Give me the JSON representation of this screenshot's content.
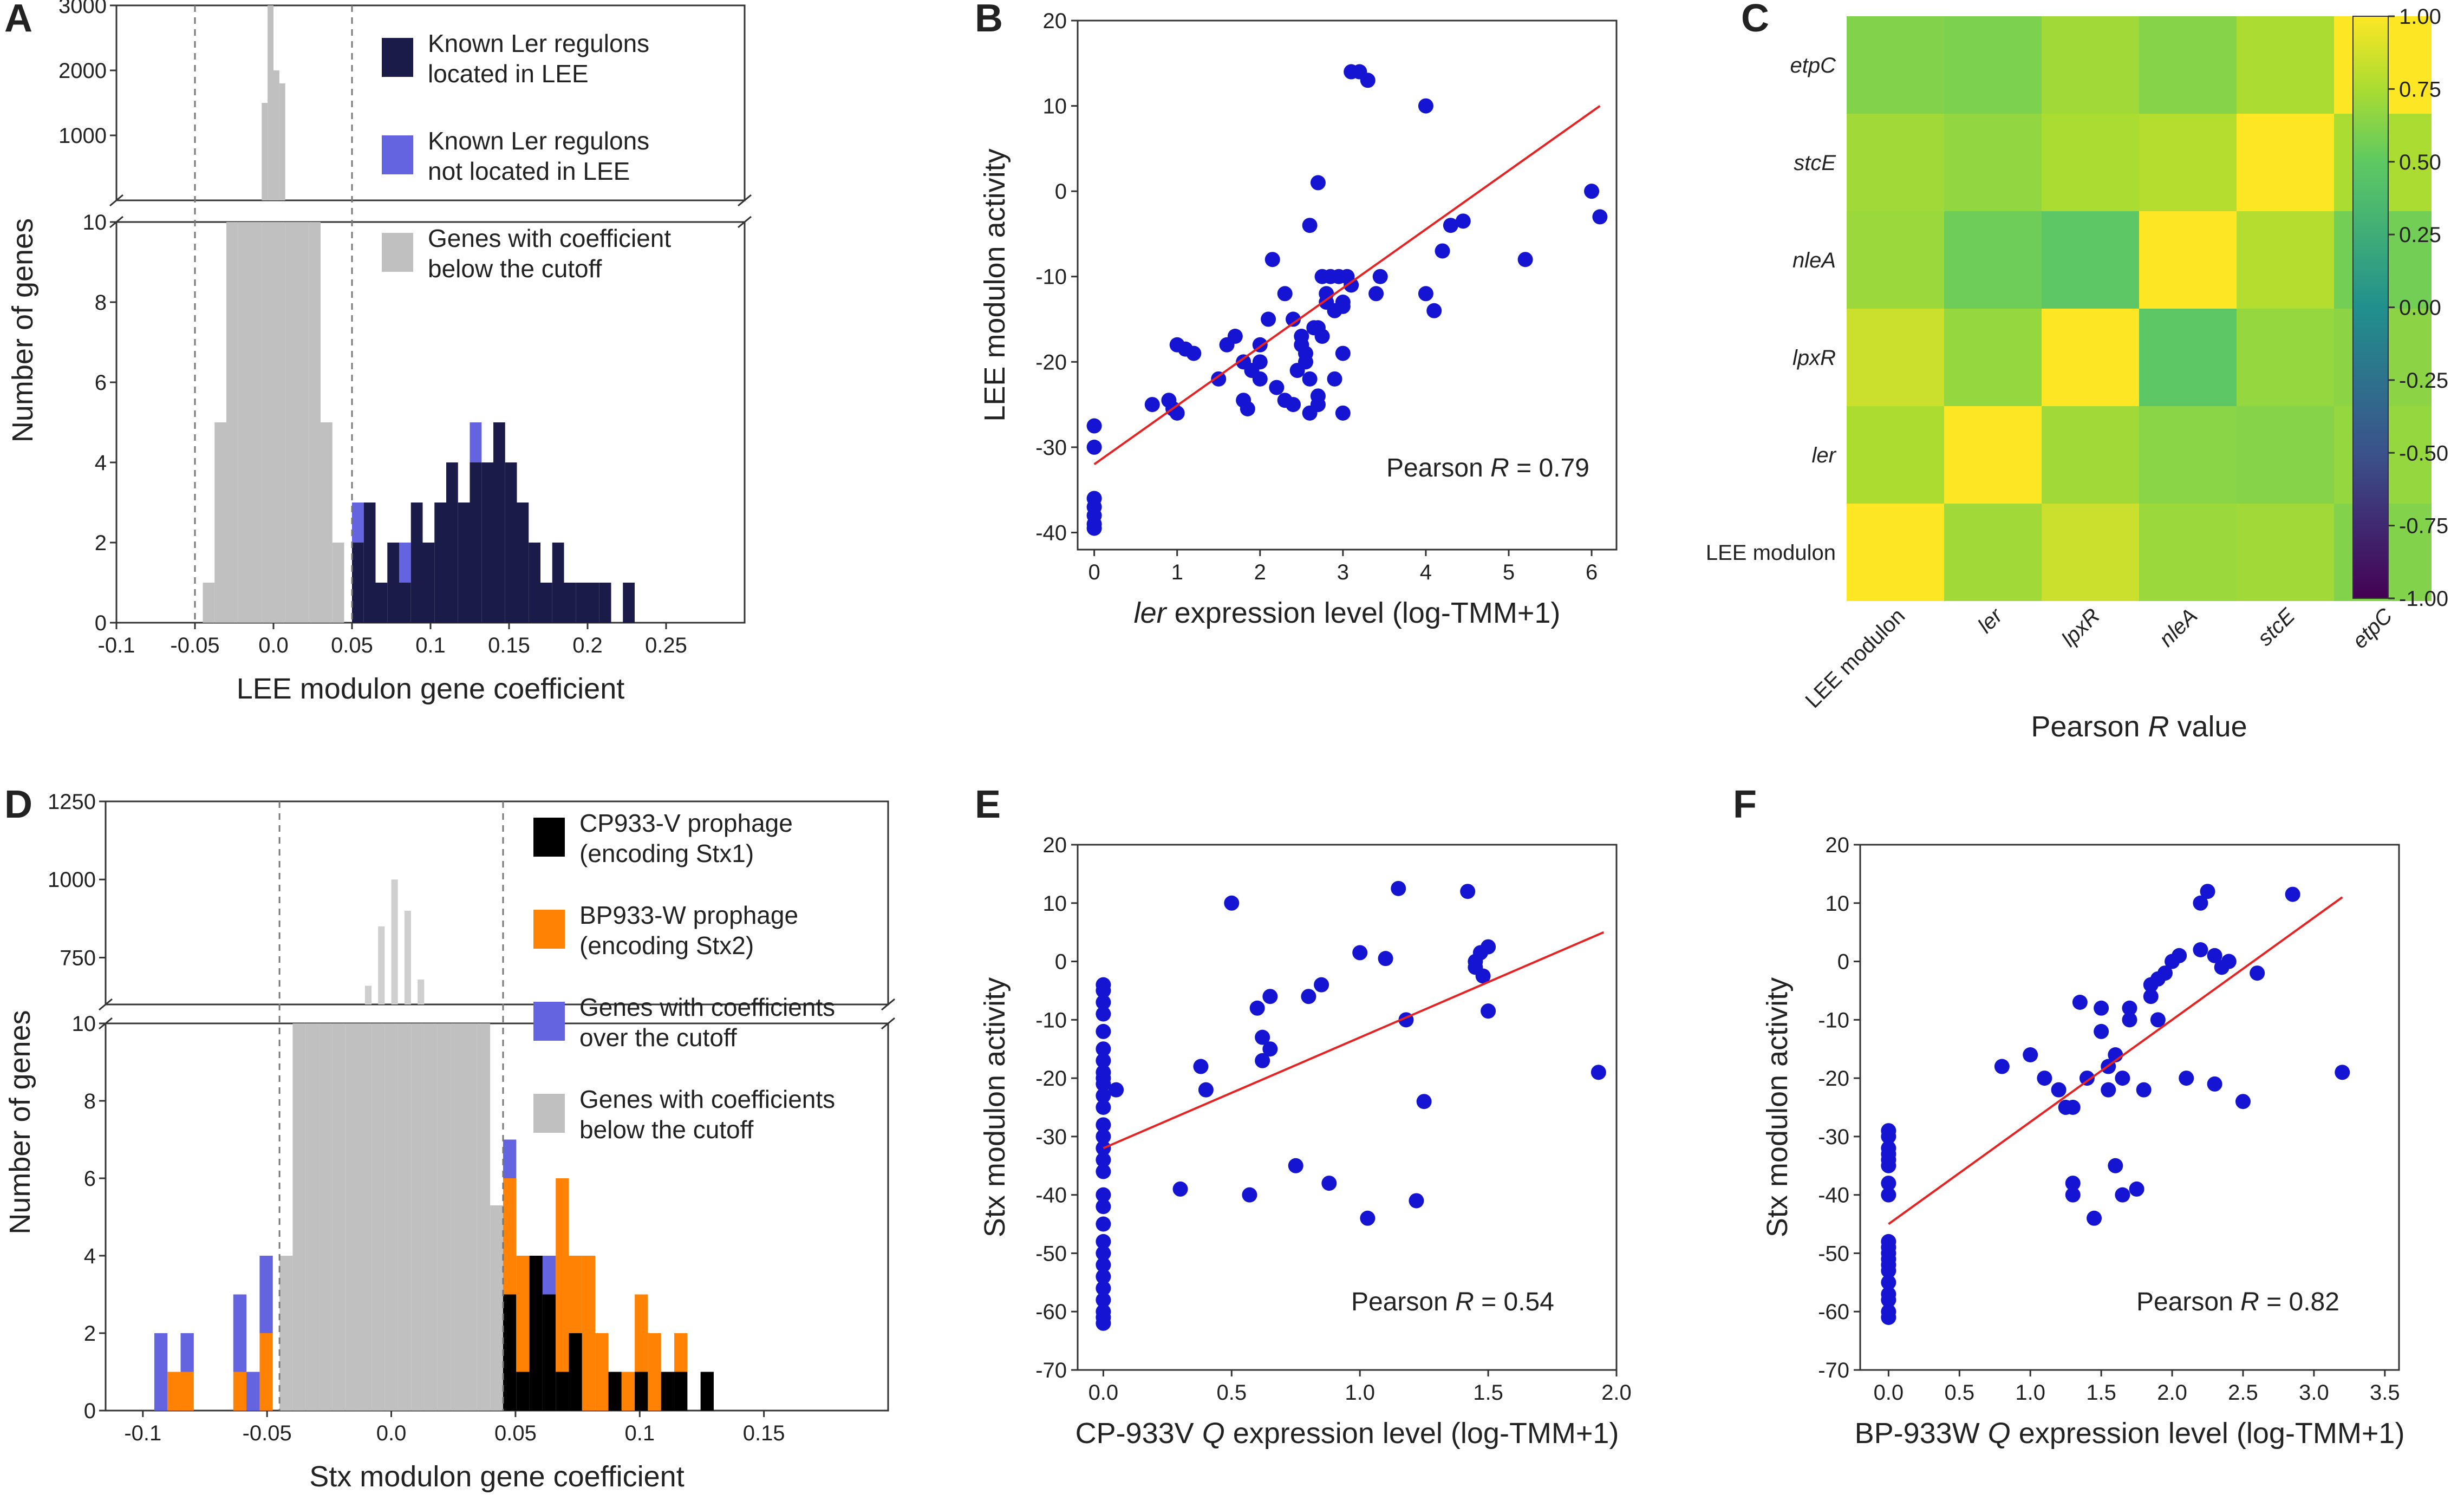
{
  "figure": {
    "panel_labels": [
      "A",
      "B",
      "C",
      "D",
      "E",
      "F"
    ],
    "colors": {
      "navy": "#1b1b4a",
      "violet": "#6464e0",
      "gray": "#c0c0c0",
      "lightgray": "#cfcfcf",
      "black": "#000000",
      "orange": "#ff8205",
      "point": "#1414d2",
      "fit": "#e62222"
    }
  },
  "chart_data": [
    {
      "panel": "A",
      "type": "bar",
      "title": "",
      "xlabel": "LEE modulon gene coefficient",
      "ylabel": "Number of genes",
      "xlim": [
        -0.1,
        0.3
      ],
      "ylim_bottom": [
        0,
        10
      ],
      "ylim_top": [
        0,
        3000
      ],
      "xticks": [
        "-0.1",
        "-0.05",
        "0.0",
        "0.05",
        "0.1",
        "0.15",
        "0.2",
        "0.25"
      ],
      "xtick_values": [
        -0.1,
        -0.05,
        0,
        0.05,
        0.1,
        0.15,
        0.2,
        0.25
      ],
      "yticks_bottom": [
        "0",
        "2",
        "4",
        "6",
        "8",
        "10"
      ],
      "yticks_top": [
        "1000",
        "2000",
        "3000"
      ],
      "cutoffs": [
        -0.05,
        0.05
      ],
      "bin_width": 0.0075,
      "legend": [
        {
          "label": "Known Ler regulons",
          "label2": "located in LEE",
          "color": "#1b1b4a"
        },
        {
          "label": "Known Ler regulons",
          "label2": "not located in LEE",
          "color": "#6464e0"
        },
        {
          "label": "Genes with coefficient",
          "label2": "below the cutoff",
          "color": "#c0c0c0"
        }
      ],
      "gray_bins": [
        {
          "x": -0.045,
          "v": 1
        },
        {
          "x": -0.0375,
          "v": 5
        },
        {
          "x": -0.03,
          "v": 10
        },
        {
          "x": -0.0225,
          "v": 10
        },
        {
          "x": -0.015,
          "v": 10
        },
        {
          "x": -0.0075,
          "v": 10
        },
        {
          "x": 0.0,
          "v": 10
        },
        {
          "x": 0.0075,
          "v": 10
        },
        {
          "x": 0.015,
          "v": 10
        },
        {
          "x": 0.0225,
          "v": 10
        },
        {
          "x": 0.03,
          "v": 5
        },
        {
          "x": 0.0375,
          "v": 2
        }
      ],
      "gray_top_bins": [
        {
          "x": -0.0075,
          "v": 1500
        },
        {
          "x": -0.00375,
          "v": 3000
        },
        {
          "x": 0.0,
          "v": 2000
        },
        {
          "x": 0.00375,
          "v": 1800
        }
      ],
      "stacked_bins": [
        {
          "x": 0.05,
          "navy": 2,
          "violet": 1
        },
        {
          "x": 0.0575,
          "navy": 3,
          "violet": 0
        },
        {
          "x": 0.065,
          "navy": 1,
          "violet": 0
        },
        {
          "x": 0.0725,
          "navy": 2,
          "violet": 0
        },
        {
          "x": 0.08,
          "navy": 1,
          "violet": 1
        },
        {
          "x": 0.0875,
          "navy": 3,
          "violet": 0
        },
        {
          "x": 0.095,
          "navy": 2,
          "violet": 0
        },
        {
          "x": 0.1025,
          "navy": 3,
          "violet": 0
        },
        {
          "x": 0.11,
          "navy": 4,
          "violet": 0
        },
        {
          "x": 0.1175,
          "navy": 3,
          "violet": 0
        },
        {
          "x": 0.125,
          "navy": 4,
          "violet": 1
        },
        {
          "x": 0.1325,
          "navy": 4,
          "violet": 0
        },
        {
          "x": 0.14,
          "navy": 5,
          "violet": 0
        },
        {
          "x": 0.1475,
          "navy": 4,
          "violet": 0
        },
        {
          "x": 0.155,
          "navy": 3,
          "violet": 0
        },
        {
          "x": 0.1625,
          "navy": 2,
          "violet": 0
        },
        {
          "x": 0.17,
          "navy": 1,
          "violet": 0
        },
        {
          "x": 0.1775,
          "navy": 2,
          "violet": 0
        },
        {
          "x": 0.185,
          "navy": 1,
          "violet": 0
        },
        {
          "x": 0.1925,
          "navy": 1,
          "violet": 0
        },
        {
          "x": 0.2,
          "navy": 1,
          "violet": 0
        },
        {
          "x": 0.2075,
          "navy": 1,
          "violet": 0
        },
        {
          "x": 0.2225,
          "navy": 1,
          "violet": 0
        }
      ]
    },
    {
      "panel": "B",
      "type": "scatter",
      "xlabel_italic": "ler",
      "xlabel": " expression level (log-TMM+1)",
      "ylabel": "LEE modulon activity",
      "xlim": [
        -0.2,
        6.3
      ],
      "ylim": [
        -42,
        20
      ],
      "xticks": [
        0,
        1,
        2,
        3,
        4,
        5,
        6
      ],
      "yticks": [
        -40,
        -30,
        -20,
        -10,
        0,
        10,
        20
      ],
      "annotation_pre": "Pearson ",
      "annotation_italic": "R",
      "annotation_post": " = 0.79",
      "fit": [
        [
          0,
          -32
        ],
        [
          6.1,
          10
        ]
      ],
      "x": [
        0,
        0,
        0,
        0,
        0,
        0,
        0,
        0.7,
        0.9,
        0.95,
        1,
        1,
        1.1,
        1.2,
        1.5,
        1.6,
        1.7,
        1.8,
        1.8,
        1.85,
        1.9,
        2,
        2,
        2,
        2.1,
        2.15,
        2.2,
        2.3,
        2.3,
        2.4,
        2.4,
        2.45,
        2.5,
        2.5,
        2.55,
        2.6,
        2.6,
        2.6,
        2.65,
        2.7,
        2.7,
        2.7,
        2.75,
        2.8,
        2.8,
        2.85,
        2.9,
        2.9,
        2.95,
        3,
        3,
        3,
        3.05,
        3.1,
        3.1,
        3.2,
        3.3,
        3.4,
        4,
        4,
        4.1,
        4.2,
        4.3,
        4.45,
        5.2,
        6,
        6.1
      ],
      "y": [
        -27.5,
        -30,
        -36,
        -37,
        -38,
        -39,
        -39.5,
        -25,
        -24.5,
        -25.5,
        -26,
        -18,
        -18.5,
        -19,
        -22,
        -18,
        -17,
        -24.5,
        -20,
        -25.5,
        -21,
        -18,
        -20,
        -22,
        -15,
        -8,
        -23,
        -12,
        -24.5,
        -15,
        -25,
        -21,
        -17,
        -18,
        -20,
        -22,
        -26,
        -4,
        -16,
        -24,
        -25,
        1,
        -17,
        -13,
        -12,
        -10,
        -14,
        -22,
        -10,
        -13,
        -13.5,
        -19,
        -10,
        -11,
        14,
        14,
        13,
        -12,
        -12,
        10,
        -14,
        -7,
        -4,
        -3.5,
        -8,
        0,
        -3
      ],
      "x_extra": [
        2.55,
        2.75,
        2.7,
        3.0,
        3.45
      ],
      "y_extra": [
        -19,
        -10,
        -16,
        -26,
        -10
      ]
    },
    {
      "panel": "C",
      "type": "heatmap",
      "xlabel_pre": "Pearson ",
      "xlabel_italic": "R",
      "xlabel_post": " value",
      "rows": [
        "etpC",
        "stcE",
        "nleA",
        "lpxR",
        "ler",
        "LEE modulon"
      ],
      "cols": [
        "LEE modulon",
        "ler",
        "lpxR",
        "nleA",
        "stcE",
        "etpC"
      ],
      "values": [
        [
          0.62,
          0.6,
          0.72,
          0.63,
          0.75,
          1.0
        ],
        [
          0.72,
          0.67,
          0.75,
          0.78,
          1.0,
          0.75
        ],
        [
          0.7,
          0.55,
          0.48,
          1.0,
          0.78,
          0.57
        ],
        [
          0.85,
          0.68,
          1.0,
          0.48,
          0.68,
          0.65
        ],
        [
          0.76,
          1.0,
          0.72,
          0.64,
          0.63,
          0.68
        ],
        [
          1.0,
          0.72,
          0.85,
          0.7,
          0.72,
          0.62
        ]
      ],
      "vmin": -1.0,
      "vmax": 1.0,
      "colorbar_ticks": [
        "1.00",
        "0.75",
        "0.50",
        "0.25",
        "0.00",
        "-0.25",
        "-0.50",
        "-0.75",
        "-1.00"
      ],
      "colorbar_values": [
        1.0,
        0.75,
        0.5,
        0.25,
        0.0,
        -0.25,
        -0.5,
        -0.75,
        -1.0
      ]
    },
    {
      "panel": "D",
      "type": "bar",
      "xlabel": "Stx modulon gene coefficient",
      "ylabel": "Number of genes",
      "xlim": [
        -0.115,
        0.2
      ],
      "ylim_bottom": [
        0,
        10
      ],
      "ylim_top": [
        600,
        1250
      ],
      "xticks": [
        "-0.1",
        "-0.05",
        "0.0",
        "0.05",
        "0.1",
        "0.15"
      ],
      "xtick_values": [
        -0.1,
        -0.05,
        0,
        0.05,
        0.1,
        0.15
      ],
      "yticks_bottom": [
        "0",
        "2",
        "4",
        "6",
        "8",
        "10"
      ],
      "yticks_top": [
        "750",
        "1000",
        "1250"
      ],
      "cutoffs": [
        -0.045,
        0.045
      ],
      "bin_width": 0.0053,
      "legend": [
        {
          "label": "CP933-V prophage",
          "label2": "(encoding Stx1)",
          "color": "#000000"
        },
        {
          "label": "BP933-W prophage",
          "label2": "(encoding Stx2)",
          "color": "#ff8205"
        },
        {
          "label": "Genes with coefficients",
          "label2": "over the cutoff",
          "color": "#6464e0"
        },
        {
          "label": "Genes with coefficients",
          "label2": "below the cutoff",
          "color": "#c0c0c0"
        }
      ],
      "gray_bins": [
        {
          "x": -0.045,
          "v": 4
        },
        {
          "x": -0.0397,
          "v": 10
        },
        {
          "x": -0.0344,
          "v": 10
        },
        {
          "x": -0.0291,
          "v": 10
        },
        {
          "x": -0.0238,
          "v": 10
        },
        {
          "x": -0.0185,
          "v": 10
        },
        {
          "x": -0.0132,
          "v": 10
        },
        {
          "x": -0.0079,
          "v": 10
        },
        {
          "x": -0.0026,
          "v": 10
        },
        {
          "x": 0.0027,
          "v": 10
        },
        {
          "x": 0.008,
          "v": 10
        },
        {
          "x": 0.0133,
          "v": 10
        },
        {
          "x": 0.0186,
          "v": 10
        },
        {
          "x": 0.0239,
          "v": 10
        },
        {
          "x": 0.0292,
          "v": 10
        },
        {
          "x": 0.0345,
          "v": 10
        },
        {
          "x": 0.0398,
          "v": 5.3
        }
      ],
      "gray_top_bins": [
        {
          "x": -0.0106,
          "v": 660
        },
        {
          "x": -0.0053,
          "v": 850
        },
        {
          "x": 0.0,
          "v": 1000
        },
        {
          "x": 0.0053,
          "v": 900
        },
        {
          "x": 0.0106,
          "v": 680
        }
      ],
      "stacked_bins": [
        {
          "x": -0.0954,
          "black": 0,
          "orange": 0,
          "violet": 2
        },
        {
          "x": -0.0901,
          "black": 0,
          "orange": 1,
          "violet": 0
        },
        {
          "x": -0.0848,
          "black": 0,
          "orange": 1,
          "violet": 1
        },
        {
          "x": -0.0795,
          "black": 0,
          "orange": 0,
          "violet": 0
        },
        {
          "x": -0.0742,
          "black": 0,
          "orange": 0,
          "violet": 0
        },
        {
          "x": -0.0689,
          "black": 0,
          "orange": 0,
          "violet": 0
        },
        {
          "x": -0.0636,
          "black": 0,
          "orange": 1,
          "violet": 2
        },
        {
          "x": -0.0583,
          "black": 0,
          "orange": 0,
          "violet": 1
        },
        {
          "x": -0.053,
          "black": 0,
          "orange": 2,
          "violet": 2
        },
        {
          "x": 0.045,
          "black": 3,
          "orange": 3,
          "violet": 1
        },
        {
          "x": 0.0503,
          "black": 1,
          "orange": 3,
          "violet": 0
        },
        {
          "x": 0.0556,
          "black": 4,
          "orange": 0,
          "violet": 0
        },
        {
          "x": 0.0609,
          "black": 3,
          "orange": 0,
          "violet": 1
        },
        {
          "x": 0.0662,
          "black": 1,
          "orange": 5,
          "violet": 0
        },
        {
          "x": 0.0715,
          "black": 2,
          "orange": 2,
          "violet": 0
        },
        {
          "x": 0.0768,
          "black": 0,
          "orange": 4,
          "violet": 0
        },
        {
          "x": 0.0821,
          "black": 0,
          "orange": 2,
          "violet": 0
        },
        {
          "x": 0.0874,
          "black": 1,
          "orange": 0,
          "violet": 0
        },
        {
          "x": 0.0927,
          "black": 0,
          "orange": 1,
          "violet": 0
        },
        {
          "x": 0.098,
          "black": 1,
          "orange": 2,
          "violet": 0
        },
        {
          "x": 0.1033,
          "black": 0,
          "orange": 2,
          "violet": 0
        },
        {
          "x": 0.1086,
          "black": 1,
          "orange": 0,
          "violet": 0
        },
        {
          "x": 0.1139,
          "black": 1,
          "orange": 1,
          "violet": 0
        },
        {
          "x": 0.1192,
          "black": 0,
          "orange": 0,
          "violet": 0
        },
        {
          "x": 0.1245,
          "black": 1,
          "orange": 0,
          "violet": 0
        }
      ]
    },
    {
      "panel": "E",
      "type": "scatter",
      "xlabel": "CP-933V ",
      "xlabel_italic": "Q",
      "xlabel_post": " expression level (log-TMM+1)",
      "ylabel": "Stx modulon activity",
      "xlim": [
        -0.1,
        2.0
      ],
      "ylim": [
        -70,
        20
      ],
      "xticks": [
        0.0,
        0.5,
        1.0,
        1.5,
        2.0
      ],
      "xtick_labels": [
        "0.0",
        "0.5",
        "1.0",
        "1.5",
        "2.0"
      ],
      "yticks": [
        -70,
        -60,
        -50,
        -40,
        -30,
        -20,
        -10,
        0,
        10,
        20
      ],
      "annotation_pre": "Pearson ",
      "annotation_italic": "R",
      "annotation_post": " = 0.54",
      "fit": [
        [
          0,
          -32
        ],
        [
          1.95,
          5
        ]
      ],
      "x": [
        0,
        0,
        0,
        0,
        0,
        0,
        0,
        0,
        0,
        0,
        0,
        0,
        0,
        0,
        0,
        0,
        0,
        0,
        0,
        0,
        0,
        0,
        0,
        0,
        0,
        0,
        0,
        0,
        0,
        0.05,
        0.3,
        0.38,
        0.4,
        0.5,
        0.57,
        0.6,
        0.62,
        0.62,
        0.65,
        0.65,
        0.75,
        0.8,
        0.85,
        0.88,
        1.0,
        1.03,
        1.1,
        1.15,
        1.18,
        1.22,
        1.25,
        1.42,
        1.45,
        1.45,
        1.47,
        1.48,
        1.5,
        1.5,
        1.93
      ],
      "y": [
        -4,
        -5,
        -7,
        -9,
        -12,
        -15,
        -17,
        -19,
        -21,
        -23,
        -28,
        -30,
        -32,
        -34,
        -36,
        -40,
        -42,
        -45,
        -48,
        -50,
        -52,
        -54,
        -56,
        -58,
        -60,
        -61,
        -62,
        -20,
        -25,
        -22,
        -39,
        -18,
        -22,
        10,
        -40,
        -8,
        -13,
        -17,
        -6,
        -15,
        -35,
        -6,
        -4,
        -38,
        1.5,
        -44,
        0.5,
        12.5,
        -10,
        -41,
        -24,
        12,
        -1,
        0,
        1.5,
        -2.5,
        2.5,
        -8.5,
        -19
      ]
    },
    {
      "panel": "F",
      "type": "scatter",
      "xlabel": "BP-933W ",
      "xlabel_italic": "Q",
      "xlabel_post": " expression level (log-TMM+1)",
      "ylabel": "Stx modulon activity",
      "xlim": [
        -0.2,
        3.6
      ],
      "ylim": [
        -70,
        20
      ],
      "xticks": [
        0.0,
        0.5,
        1.0,
        1.5,
        2.0,
        2.5,
        3.0,
        3.5
      ],
      "xtick_labels": [
        "0.0",
        "0.5",
        "1.0",
        "1.5",
        "2.0",
        "2.5",
        "3.0",
        "3.5"
      ],
      "yticks": [
        -70,
        -60,
        -50,
        -40,
        -30,
        -20,
        -10,
        0,
        10,
        20
      ],
      "annotation_pre": "Pearson ",
      "annotation_italic": "R",
      "annotation_post": " = 0.82",
      "fit": [
        [
          0,
          -45
        ],
        [
          3.2,
          11
        ]
      ],
      "x": [
        0,
        0,
        0,
        0,
        0,
        0,
        0,
        0,
        0,
        0,
        0,
        0,
        0,
        0,
        0,
        0,
        0,
        0,
        0,
        0.8,
        1.0,
        1.1,
        1.2,
        1.25,
        1.3,
        1.3,
        1.3,
        1.35,
        1.4,
        1.45,
        1.5,
        1.5,
        1.55,
        1.55,
        1.6,
        1.6,
        1.65,
        1.65,
        1.7,
        1.7,
        1.75,
        1.8,
        1.85,
        1.85,
        1.9,
        1.9,
        1.95,
        2.0,
        2.05,
        2.1,
        2.2,
        2.2,
        2.25,
        2.3,
        2.3,
        2.35,
        2.4,
        2.5,
        2.6,
        2.85,
        3.2
      ],
      "y": [
        -29,
        -30,
        -32,
        -33,
        -34,
        -35,
        -38,
        -40,
        -48,
        -49,
        -50,
        -51,
        -52,
        -53,
        -55,
        -57,
        -58,
        -60,
        -61,
        -18,
        -16,
        -20,
        -22,
        -25,
        -40,
        -38,
        -25,
        -7,
        -20,
        -44,
        -12,
        -8,
        -22,
        -18,
        -16,
        -35,
        -20,
        -40,
        -8,
        -10,
        -39,
        -22,
        -6,
        -4,
        -10,
        -3,
        -2,
        0,
        1,
        -20,
        10,
        2,
        12,
        1,
        -21,
        -1,
        0,
        -24,
        -2,
        11.5,
        -19
      ]
    }
  ]
}
